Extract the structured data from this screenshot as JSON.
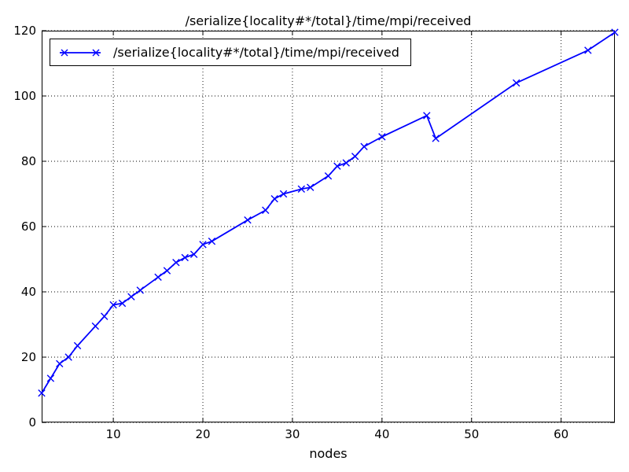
{
  "chart": {
    "title": "/serialize{locality#*/total}/time/mpi/received",
    "xlabel": "nodes",
    "legend_label": "/serialize{locality#*/total}/time/mpi/received"
  },
  "colors": {
    "line": "#0000ff",
    "axis": "#000000",
    "grid": "#000000",
    "background": "#ffffff",
    "text": "#000000"
  },
  "chart_data": {
    "type": "line",
    "title": "/serialize{locality#*/total}/time/mpi/received",
    "xlabel": "nodes",
    "ylabel": "",
    "xlim": [
      2,
      66
    ],
    "ylim": [
      0,
      120
    ],
    "xticks": [
      10,
      20,
      30,
      40,
      50,
      60
    ],
    "yticks": [
      0,
      20,
      40,
      60,
      80,
      100,
      120
    ],
    "grid": true,
    "grid_style": "dotted",
    "legend_position": "upper left",
    "series": [
      {
        "name": "/serialize{locality#*/total}/time/mpi/received",
        "color": "#0000ff",
        "marker": "x",
        "x": [
          2,
          3,
          4,
          5,
          6,
          8,
          9,
          10,
          11,
          12,
          13,
          15,
          16,
          17,
          18,
          19,
          20,
          21,
          25,
          27,
          28,
          29,
          31,
          32,
          34,
          35,
          36,
          37,
          38,
          40,
          45,
          46,
          55,
          63,
          66
        ],
        "y": [
          9,
          13.5,
          18,
          20,
          23.5,
          29.5,
          32.5,
          36,
          36.5,
          38.5,
          40.5,
          44.5,
          46.5,
          49,
          50.5,
          51.5,
          54.5,
          55.5,
          62,
          65,
          68.5,
          70,
          71.5,
          72,
          75.5,
          78.5,
          79.5,
          81.5,
          84.5,
          87.5,
          94,
          87,
          104,
          114,
          119.5
        ]
      }
    ]
  }
}
